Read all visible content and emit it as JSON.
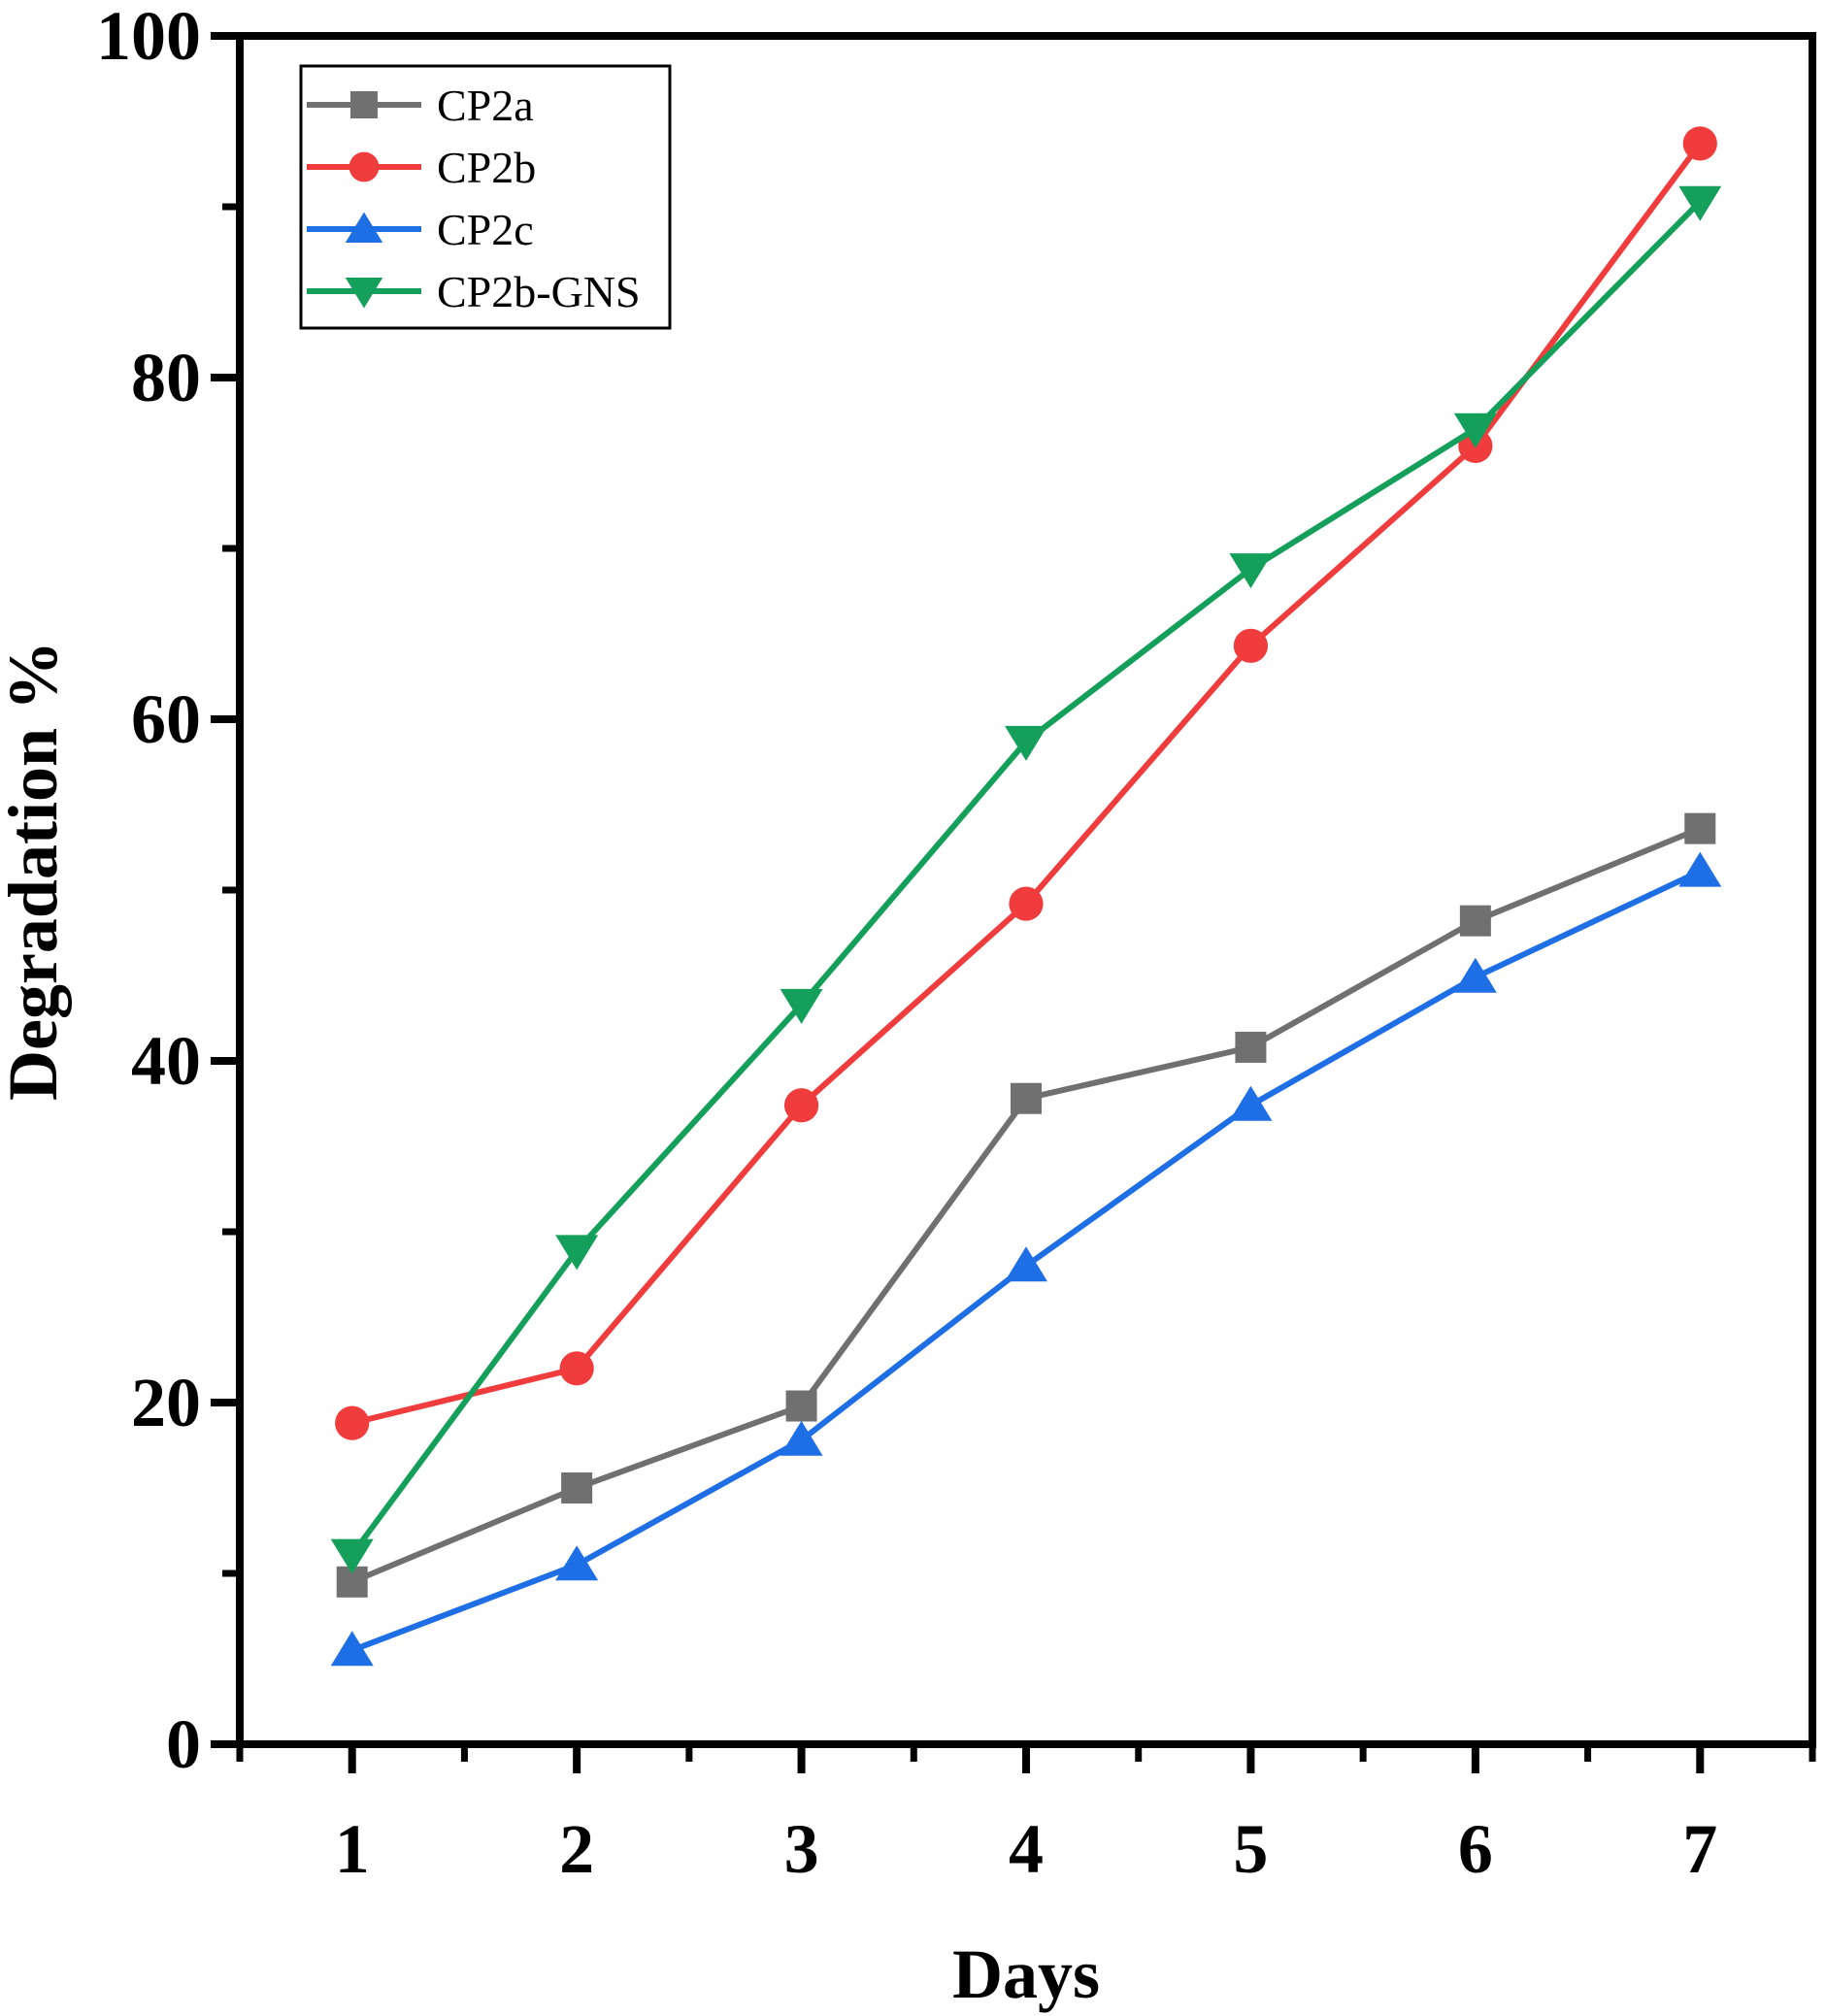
{
  "chart_data": {
    "type": "line",
    "title": "",
    "xlabel": "Days",
    "ylabel": "Degradation %",
    "x": [
      1,
      2,
      3,
      4,
      5,
      6,
      7
    ],
    "x_tick_labels": [
      "1",
      "2",
      "3",
      "4",
      "5",
      "6",
      "7"
    ],
    "xlim": [
      0.5,
      7.5
    ],
    "ylim": [
      0,
      100
    ],
    "y_major_ticks": [
      0,
      20,
      40,
      60,
      80,
      100
    ],
    "y_tick_labels": [
      "0",
      "20",
      "40",
      "60",
      "80",
      "100"
    ],
    "y_minor_ticks": [
      10,
      30,
      50,
      70,
      90
    ],
    "grid": false,
    "legend_position": "top-left",
    "series": [
      {
        "name": "CP2a",
        "color": "#707070",
        "marker": "square",
        "values": [
          9.5,
          15,
          19.8,
          37.8,
          40.8,
          48.2,
          53.6
        ]
      },
      {
        "name": "CP2b",
        "color": "#f03c3c",
        "marker": "circle",
        "values": [
          18.8,
          22,
          37.4,
          49.2,
          64.3,
          76,
          93.7
        ]
      },
      {
        "name": "CP2c",
        "color": "#1e6ee6",
        "marker": "triangle-up",
        "values": [
          5.5,
          10.5,
          17.8,
          28,
          37.4,
          44.9,
          51.1
        ]
      },
      {
        "name": "CP2b-GNS",
        "color": "#14a05a",
        "marker": "triangle-down",
        "values": [
          11.1,
          28.9,
          43.3,
          58.7,
          68.8,
          77,
          90.3
        ]
      }
    ]
  }
}
